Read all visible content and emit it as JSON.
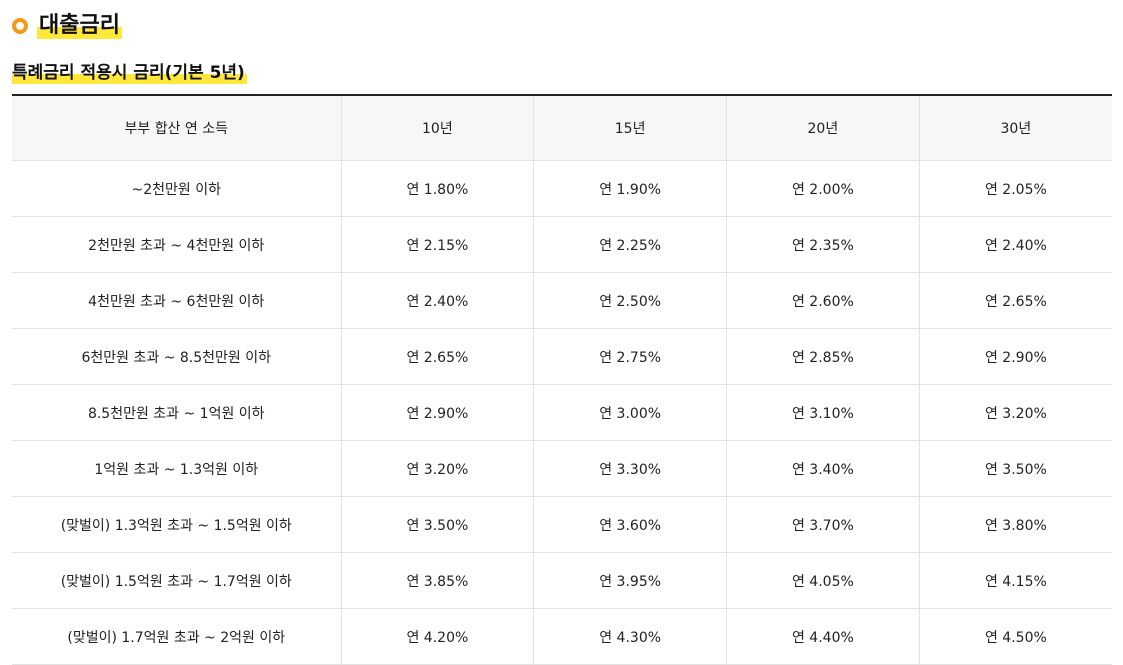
{
  "section": {
    "title": "대출금리",
    "icon": "ring-bullet-icon",
    "accent": "#f39a16",
    "highlight": "#ffe83a"
  },
  "subtitle": "특례금리 적용시 금리(기본 5년)",
  "table": {
    "headers": [
      "부부 합산 연 소득",
      "10년",
      "15년",
      "20년",
      "30년"
    ],
    "rows": [
      {
        "income": "~2천만원 이하",
        "rates": [
          "연 1.80%",
          "연 1.90%",
          "연 2.00%",
          "연 2.05%"
        ]
      },
      {
        "income": "2천만원 초과 ~ 4천만원 이하",
        "rates": [
          "연 2.15%",
          "연 2.25%",
          "연 2.35%",
          "연 2.40%"
        ]
      },
      {
        "income": "4천만원 초과 ~ 6천만원 이하",
        "rates": [
          "연 2.40%",
          "연 2.50%",
          "연 2.60%",
          "연 2.65%"
        ]
      },
      {
        "income": "6천만원 초과 ~ 8.5천만원 이하",
        "rates": [
          "연 2.65%",
          "연 2.75%",
          "연 2.85%",
          "연 2.90%"
        ]
      },
      {
        "income": "8.5천만원 초과 ~ 1억원 이하",
        "rates": [
          "연 2.90%",
          "연 3.00%",
          "연 3.10%",
          "연 3.20%"
        ]
      },
      {
        "income": "1억원 초과 ~ 1.3억원 이하",
        "rates": [
          "연 3.20%",
          "연 3.30%",
          "연 3.40%",
          "연 3.50%"
        ]
      },
      {
        "income": "(맞벌이) 1.3억원 초과 ~ 1.5억원 이하",
        "rates": [
          "연 3.50%",
          "연 3.60%",
          "연 3.70%",
          "연 3.80%"
        ]
      },
      {
        "income": "(맞벌이) 1.5억원 초과 ~ 1.7억원 이하",
        "rates": [
          "연 3.85%",
          "연 3.95%",
          "연 4.05%",
          "연 4.15%"
        ]
      },
      {
        "income": "(맞벌이) 1.7억원 초과 ~ 2억원 이하",
        "rates": [
          "연 4.20%",
          "연 4.30%",
          "연 4.40%",
          "연 4.50%"
        ]
      }
    ]
  }
}
